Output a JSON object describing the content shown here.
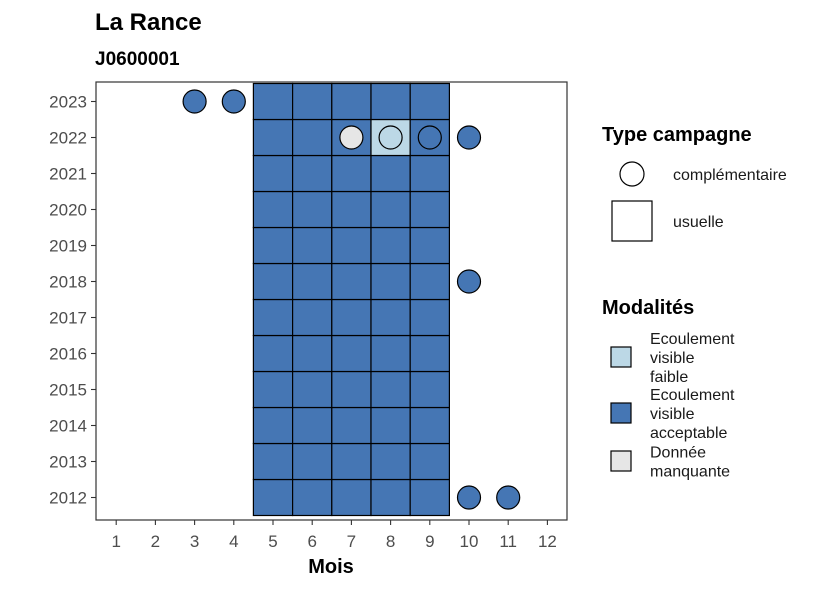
{
  "chart_data": {
    "type": "heatmap",
    "title": "La Rance",
    "subtitle": "J0600001",
    "xlabel": "Mois",
    "ylabel": "",
    "x": [
      1,
      2,
      3,
      4,
      5,
      6,
      7,
      8,
      9,
      10,
      11,
      12
    ],
    "y": [
      2012,
      2013,
      2014,
      2015,
      2016,
      2017,
      2018,
      2019,
      2020,
      2021,
      2022,
      2023
    ],
    "colors": {
      "faible": "#bcd8e6",
      "acceptable": "#4576b4",
      "manquante": "#e6e6e6"
    },
    "cells": [
      {
        "year": 2012,
        "month": 5,
        "type": "usuelle",
        "mod": "acceptable"
      },
      {
        "year": 2012,
        "month": 6,
        "type": "usuelle",
        "mod": "acceptable"
      },
      {
        "year": 2012,
        "month": 7,
        "type": "usuelle",
        "mod": "acceptable"
      },
      {
        "year": 2012,
        "month": 8,
        "type": "usuelle",
        "mod": "acceptable"
      },
      {
        "year": 2012,
        "month": 9,
        "type": "usuelle",
        "mod": "acceptable"
      },
      {
        "year": 2012,
        "month": 10,
        "type": "complementaire",
        "mod": "acceptable"
      },
      {
        "year": 2012,
        "month": 11,
        "type": "complementaire",
        "mod": "acceptable"
      },
      {
        "year": 2013,
        "month": 5,
        "type": "usuelle",
        "mod": "acceptable"
      },
      {
        "year": 2013,
        "month": 6,
        "type": "usuelle",
        "mod": "acceptable"
      },
      {
        "year": 2013,
        "month": 7,
        "type": "usuelle",
        "mod": "acceptable"
      },
      {
        "year": 2013,
        "month": 8,
        "type": "usuelle",
        "mod": "acceptable"
      },
      {
        "year": 2013,
        "month": 9,
        "type": "usuelle",
        "mod": "acceptable"
      },
      {
        "year": 2014,
        "month": 5,
        "type": "usuelle",
        "mod": "acceptable"
      },
      {
        "year": 2014,
        "month": 6,
        "type": "usuelle",
        "mod": "acceptable"
      },
      {
        "year": 2014,
        "month": 7,
        "type": "usuelle",
        "mod": "acceptable"
      },
      {
        "year": 2014,
        "month": 8,
        "type": "usuelle",
        "mod": "acceptable"
      },
      {
        "year": 2014,
        "month": 9,
        "type": "usuelle",
        "mod": "acceptable"
      },
      {
        "year": 2015,
        "month": 5,
        "type": "usuelle",
        "mod": "acceptable"
      },
      {
        "year": 2015,
        "month": 6,
        "type": "usuelle",
        "mod": "acceptable"
      },
      {
        "year": 2015,
        "month": 7,
        "type": "usuelle",
        "mod": "acceptable"
      },
      {
        "year": 2015,
        "month": 8,
        "type": "usuelle",
        "mod": "acceptable"
      },
      {
        "year": 2015,
        "month": 9,
        "type": "usuelle",
        "mod": "acceptable"
      },
      {
        "year": 2016,
        "month": 5,
        "type": "usuelle",
        "mod": "acceptable"
      },
      {
        "year": 2016,
        "month": 6,
        "type": "usuelle",
        "mod": "acceptable"
      },
      {
        "year": 2016,
        "month": 7,
        "type": "usuelle",
        "mod": "acceptable"
      },
      {
        "year": 2016,
        "month": 8,
        "type": "usuelle",
        "mod": "acceptable"
      },
      {
        "year": 2016,
        "month": 9,
        "type": "usuelle",
        "mod": "acceptable"
      },
      {
        "year": 2017,
        "month": 5,
        "type": "usuelle",
        "mod": "acceptable"
      },
      {
        "year": 2017,
        "month": 6,
        "type": "usuelle",
        "mod": "acceptable"
      },
      {
        "year": 2017,
        "month": 7,
        "type": "usuelle",
        "mod": "acceptable"
      },
      {
        "year": 2017,
        "month": 8,
        "type": "usuelle",
        "mod": "acceptable"
      },
      {
        "year": 2017,
        "month": 9,
        "type": "usuelle",
        "mod": "acceptable"
      },
      {
        "year": 2018,
        "month": 5,
        "type": "usuelle",
        "mod": "acceptable"
      },
      {
        "year": 2018,
        "month": 6,
        "type": "usuelle",
        "mod": "acceptable"
      },
      {
        "year": 2018,
        "month": 7,
        "type": "usuelle",
        "mod": "acceptable"
      },
      {
        "year": 2018,
        "month": 8,
        "type": "usuelle",
        "mod": "acceptable"
      },
      {
        "year": 2018,
        "month": 9,
        "type": "usuelle",
        "mod": "acceptable"
      },
      {
        "year": 2018,
        "month": 10,
        "type": "complementaire",
        "mod": "acceptable"
      },
      {
        "year": 2019,
        "month": 5,
        "type": "usuelle",
        "mod": "acceptable"
      },
      {
        "year": 2019,
        "month": 6,
        "type": "usuelle",
        "mod": "acceptable"
      },
      {
        "year": 2019,
        "month": 7,
        "type": "usuelle",
        "mod": "acceptable"
      },
      {
        "year": 2019,
        "month": 8,
        "type": "usuelle",
        "mod": "acceptable"
      },
      {
        "year": 2019,
        "month": 9,
        "type": "usuelle",
        "mod": "acceptable"
      },
      {
        "year": 2020,
        "month": 5,
        "type": "usuelle",
        "mod": "acceptable"
      },
      {
        "year": 2020,
        "month": 6,
        "type": "usuelle",
        "mod": "acceptable"
      },
      {
        "year": 2020,
        "month": 7,
        "type": "usuelle",
        "mod": "acceptable"
      },
      {
        "year": 2020,
        "month": 8,
        "type": "usuelle",
        "mod": "acceptable"
      },
      {
        "year": 2020,
        "month": 9,
        "type": "usuelle",
        "mod": "acceptable"
      },
      {
        "year": 2021,
        "month": 5,
        "type": "usuelle",
        "mod": "acceptable"
      },
      {
        "year": 2021,
        "month": 6,
        "type": "usuelle",
        "mod": "acceptable"
      },
      {
        "year": 2021,
        "month": 7,
        "type": "usuelle",
        "mod": "acceptable"
      },
      {
        "year": 2021,
        "month": 8,
        "type": "usuelle",
        "mod": "acceptable"
      },
      {
        "year": 2021,
        "month": 9,
        "type": "usuelle",
        "mod": "acceptable"
      },
      {
        "year": 2022,
        "month": 5,
        "type": "usuelle",
        "mod": "acceptable"
      },
      {
        "year": 2022,
        "month": 6,
        "type": "usuelle",
        "mod": "acceptable"
      },
      {
        "year": 2022,
        "month": 7,
        "type": "usuelle",
        "mod": "acceptable"
      },
      {
        "year": 2022,
        "month": 8,
        "type": "usuelle",
        "mod": "faible"
      },
      {
        "year": 2022,
        "month": 9,
        "type": "usuelle",
        "mod": "acceptable"
      },
      {
        "year": 2022,
        "month": 7,
        "type": "complementaire",
        "mod": "manquante"
      },
      {
        "year": 2022,
        "month": 8,
        "type": "complementaire",
        "mod": "faible"
      },
      {
        "year": 2022,
        "month": 9,
        "type": "complementaire",
        "mod": "acceptable"
      },
      {
        "year": 2022,
        "month": 10,
        "type": "complementaire",
        "mod": "acceptable"
      },
      {
        "year": 2023,
        "month": 5,
        "type": "usuelle",
        "mod": "acceptable"
      },
      {
        "year": 2023,
        "month": 6,
        "type": "usuelle",
        "mod": "acceptable"
      },
      {
        "year": 2023,
        "month": 7,
        "type": "usuelle",
        "mod": "acceptable"
      },
      {
        "year": 2023,
        "month": 8,
        "type": "usuelle",
        "mod": "acceptable"
      },
      {
        "year": 2023,
        "month": 9,
        "type": "usuelle",
        "mod": "acceptable"
      },
      {
        "year": 2023,
        "month": 3,
        "type": "complementaire",
        "mod": "acceptable"
      },
      {
        "year": 2023,
        "month": 4,
        "type": "complementaire",
        "mod": "acceptable"
      }
    ],
    "legend": {
      "placement": "right",
      "type_title": "Type campagne",
      "type_items": [
        {
          "key": "complementaire",
          "label": "complémentaire"
        },
        {
          "key": "usuelle",
          "label": "usuelle"
        }
      ],
      "mod_title": "Modalités",
      "mod_items": [
        {
          "key": "faible",
          "lines": [
            "Ecoulement",
            "visible",
            "faible"
          ]
        },
        {
          "key": "acceptable",
          "lines": [
            "Ecoulement",
            "visible",
            "acceptable"
          ]
        },
        {
          "key": "manquante",
          "lines": [
            "Donnée",
            "manquante"
          ]
        }
      ]
    },
    "grid": false
  }
}
